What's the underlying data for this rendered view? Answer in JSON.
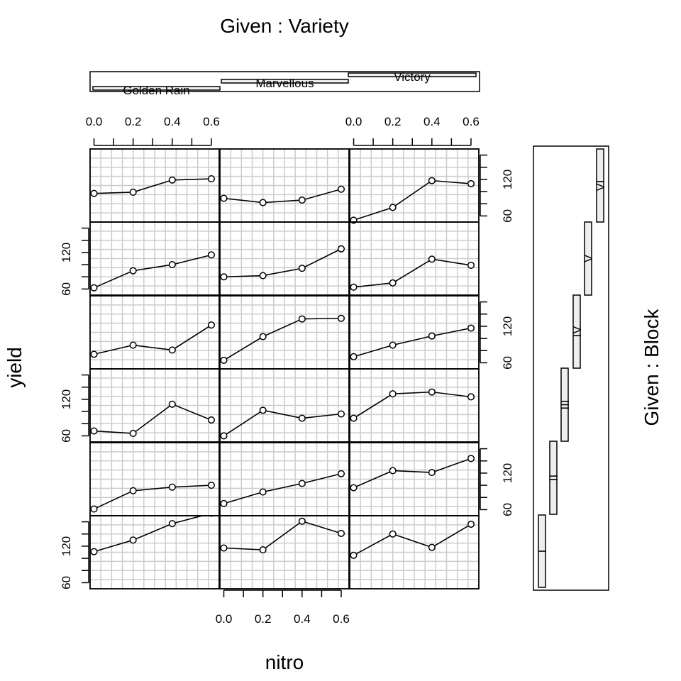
{
  "chart_data": {
    "type": "coplot",
    "title": "Given : Variety",
    "xlabel": "nitro",
    "ylabel": "yield",
    "right_label": "Given : Block",
    "x_ticks": [
      "0.0",
      "0.2",
      "0.4",
      "0.6"
    ],
    "y_ticks": [
      "60",
      "120"
    ],
    "xlim": [
      -0.02,
      0.64
    ],
    "ylim": [
      50,
      170
    ],
    "x": [
      0.0,
      0.2,
      0.4,
      0.6
    ],
    "column_factor": {
      "name": "Variety",
      "levels": [
        "Golden Rain",
        "Marvellous",
        "Victory"
      ]
    },
    "row_factor": {
      "name": "Block",
      "levels": [
        "I",
        "II",
        "III",
        "IV",
        "V",
        "VI"
      ]
    },
    "panels": [
      {
        "block": "I",
        "variety": "Golden Rain",
        "y": [
          111,
          130,
          157,
          174
        ]
      },
      {
        "block": "I",
        "variety": "Marvellous",
        "y": [
          117,
          114,
          161,
          141
        ]
      },
      {
        "block": "I",
        "variety": "Victory",
        "y": [
          105,
          140,
          118,
          156
        ]
      },
      {
        "block": "II",
        "variety": "Golden Rain",
        "y": [
          61,
          91,
          97,
          100
        ]
      },
      {
        "block": "II",
        "variety": "Marvellous",
        "y": [
          70,
          89,
          103,
          119
        ]
      },
      {
        "block": "II",
        "variety": "Victory",
        "y": [
          96,
          124,
          121,
          144
        ]
      },
      {
        "block": "III",
        "variety": "Golden Rain",
        "y": [
          68,
          64,
          112,
          86
        ]
      },
      {
        "block": "III",
        "variety": "Marvellous",
        "y": [
          60,
          102,
          89,
          96
        ]
      },
      {
        "block": "III",
        "variety": "Victory",
        "y": [
          89,
          129,
          132,
          124
        ]
      },
      {
        "block": "IV",
        "variety": "Golden Rain",
        "y": [
          74,
          89,
          81,
          122
        ]
      },
      {
        "block": "IV",
        "variety": "Marvellous",
        "y": [
          64,
          103,
          132,
          133
        ]
      },
      {
        "block": "IV",
        "variety": "Victory",
        "y": [
          70,
          89,
          104,
          117
        ]
      },
      {
        "block": "V",
        "variety": "Golden Rain",
        "y": [
          62,
          90,
          100,
          116
        ]
      },
      {
        "block": "V",
        "variety": "Marvellous",
        "y": [
          80,
          82,
          94,
          126
        ]
      },
      {
        "block": "V",
        "variety": "Victory",
        "y": [
          63,
          70,
          109,
          99
        ]
      },
      {
        "block": "VI",
        "variety": "Golden Rain",
        "y": [
          97,
          99,
          119,
          121
        ]
      },
      {
        "block": "VI",
        "variety": "Marvellous",
        "y": [
          89,
          82,
          86,
          104
        ]
      },
      {
        "block": "VI",
        "variety": "Victory",
        "y": [
          53,
          74,
          118,
          113
        ]
      }
    ],
    "grid": true
  }
}
